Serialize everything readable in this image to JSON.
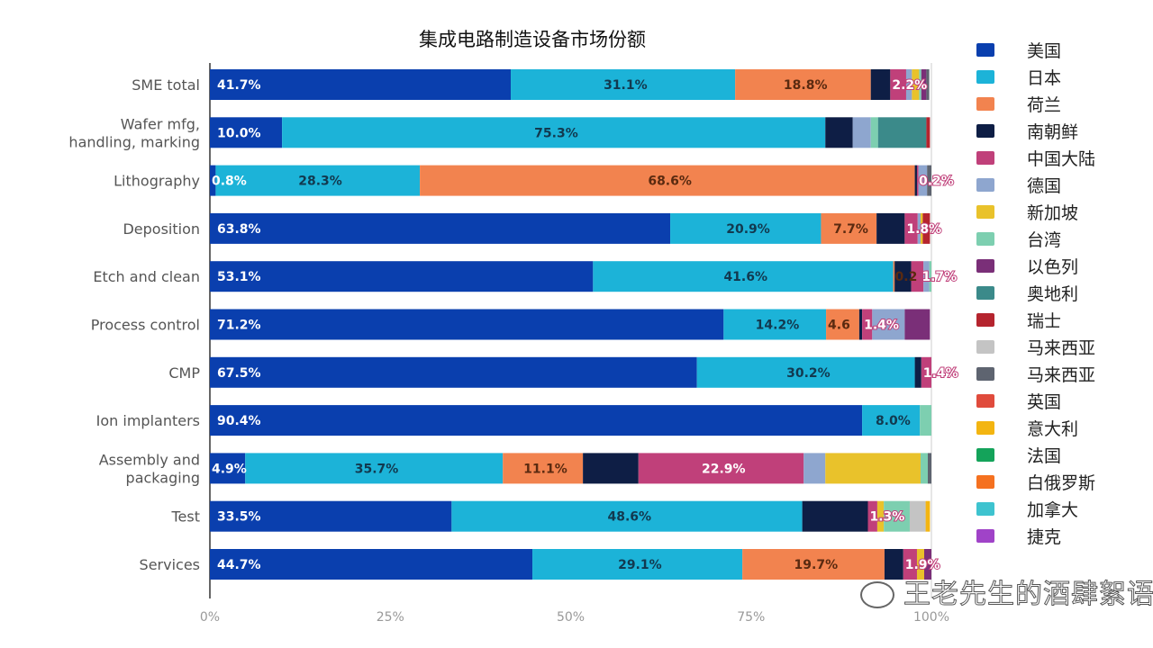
{
  "chart_data": {
    "type": "bar",
    "orientation": "horizontal",
    "stacked": true,
    "title": "集成电路制造设备市场份额",
    "xlim": [
      0,
      100
    ],
    "x_ticks": [
      "0%",
      "25%",
      "50%",
      "75%",
      "100%"
    ],
    "legend_position": "right",
    "categories": [
      "SME total",
      "Wafer mfg, handling, marking",
      "Lithography",
      "Deposition",
      "Etch and clean",
      "Process control",
      "CMP",
      "Ion implanters",
      "Assembly and packaging",
      "Test",
      "Services"
    ],
    "series": [
      {
        "name": "美国",
        "color": "#0a3fae",
        "values": [
          41.7,
          10.0,
          0.8,
          63.8,
          53.1,
          71.2,
          67.5,
          90.4,
          4.9,
          33.5,
          44.7
        ],
        "labels": [
          "41.7%",
          "10.0%",
          "0.8%",
          "63.8%",
          "53.1%",
          "71.2%",
          "67.5%",
          "90.4%",
          "4.9%",
          "33.5%",
          "44.7%"
        ]
      },
      {
        "name": "日本",
        "color": "#1cb3d8",
        "values": [
          31.1,
          75.3,
          28.3,
          20.9,
          41.6,
          14.2,
          30.2,
          8.0,
          35.7,
          48.6,
          29.1
        ],
        "labels": [
          "31.1%",
          "75.3%",
          "28.3%",
          "20.9%",
          "41.6%",
          "14.2%",
          "30.2%",
          "8.0%",
          "35.7%",
          "48.6%",
          "29.1%"
        ]
      },
      {
        "name": "荷兰",
        "color": "#f2834f",
        "values": [
          18.8,
          0,
          68.6,
          7.7,
          0.2,
          4.6,
          0,
          0,
          11.1,
          0,
          19.7
        ],
        "labels": [
          "18.8%",
          "",
          "68.6%",
          "7.7%",
          "0.2",
          "4.6",
          "",
          "",
          "11.1%",
          "",
          "19.7%"
        ]
      },
      {
        "name": "南朝鲜",
        "color": "#0e1e45",
        "values": [
          2.7,
          3.8,
          0.3,
          3.9,
          2.3,
          0.4,
          0.9,
          0,
          7.7,
          9.1,
          2.6
        ],
        "labels": []
      },
      {
        "name": "中国大陆",
        "color": "#c0407a",
        "values": [
          2.2,
          0,
          0.2,
          1.8,
          1.7,
          1.4,
          1.4,
          0,
          22.9,
          1.3,
          1.9
        ],
        "labels": [
          "2.2%",
          "",
          "0.2%",
          "1.8%",
          "1.7%",
          "1.4%",
          "1.4%",
          "",
          "22.9%",
          "1.3%",
          "1.9%"
        ]
      },
      {
        "name": "德国",
        "color": "#8ea6cf",
        "values": [
          0.8,
          2.5,
          1.2,
          0.4,
          0.8,
          4.5,
          0,
          0,
          3.0,
          0,
          0
        ],
        "labels": []
      },
      {
        "name": "新加坡",
        "color": "#e9c22b",
        "values": [
          1.0,
          0,
          0,
          0.3,
          0,
          0,
          0,
          0,
          13.2,
          0.9,
          1.0
        ],
        "labels": []
      },
      {
        "name": "台湾",
        "color": "#7dcfb0",
        "values": [
          0.3,
          1.0,
          0,
          0,
          0.3,
          0,
          0,
          1.6,
          1.0,
          3.6,
          0
        ],
        "labels": []
      },
      {
        "name": "以色列",
        "color": "#7a2f78",
        "values": [
          0.7,
          0,
          0,
          0,
          0,
          3.5,
          0,
          0,
          0,
          0,
          1.0
        ],
        "labels": []
      },
      {
        "name": "奥地利",
        "color": "#3b8a8a",
        "values": [
          0,
          6.7,
          0,
          0,
          0,
          0,
          0,
          0,
          0,
          0,
          0
        ],
        "labels": []
      },
      {
        "name": "瑞士",
        "color": "#b5242e",
        "values": [
          0,
          0.5,
          0,
          1.0,
          0,
          0,
          0,
          0,
          0,
          0,
          0
        ],
        "labels": []
      },
      {
        "name": "马来西亚",
        "color": "#c4c4c4",
        "values": [
          0,
          0,
          0,
          0,
          0,
          0,
          0,
          0,
          0,
          2.2,
          0
        ],
        "labels": []
      },
      {
        "name": "马来西亚",
        "color": "#5e6470",
        "values": [
          0.4,
          0,
          0.6,
          0,
          0,
          0,
          0,
          0,
          0.5,
          0,
          0
        ],
        "labels": []
      },
      {
        "name": "英国",
        "color": "#e04b3c",
        "values": [
          0,
          0,
          0,
          0,
          0,
          0,
          0,
          0,
          0,
          0,
          0
        ],
        "labels": []
      },
      {
        "name": "意大利",
        "color": "#f3b511",
        "values": [
          0,
          0,
          0,
          0,
          0,
          0,
          0,
          0,
          0,
          0.6,
          0
        ],
        "labels": []
      },
      {
        "name": "法国",
        "color": "#14a35a",
        "values": [
          0,
          0,
          0,
          0,
          0,
          0,
          0,
          0,
          0,
          0,
          0
        ],
        "labels": []
      },
      {
        "name": "白俄罗斯",
        "color": "#f57120",
        "values": [
          0,
          0,
          0,
          0,
          0,
          0,
          0,
          0,
          0,
          0,
          0
        ],
        "labels": []
      },
      {
        "name": "加拿大",
        "color": "#3ec3cf",
        "values": [
          0,
          0,
          0,
          0,
          0,
          0,
          0,
          0,
          0,
          0,
          0
        ],
        "labels": []
      },
      {
        "name": "捷克",
        "color": "#a043c8",
        "values": [
          0,
          0,
          0,
          0,
          0,
          0,
          0,
          0,
          0,
          0,
          0
        ],
        "labels": []
      }
    ]
  },
  "watermark": "王老先生的酒肆絮语"
}
